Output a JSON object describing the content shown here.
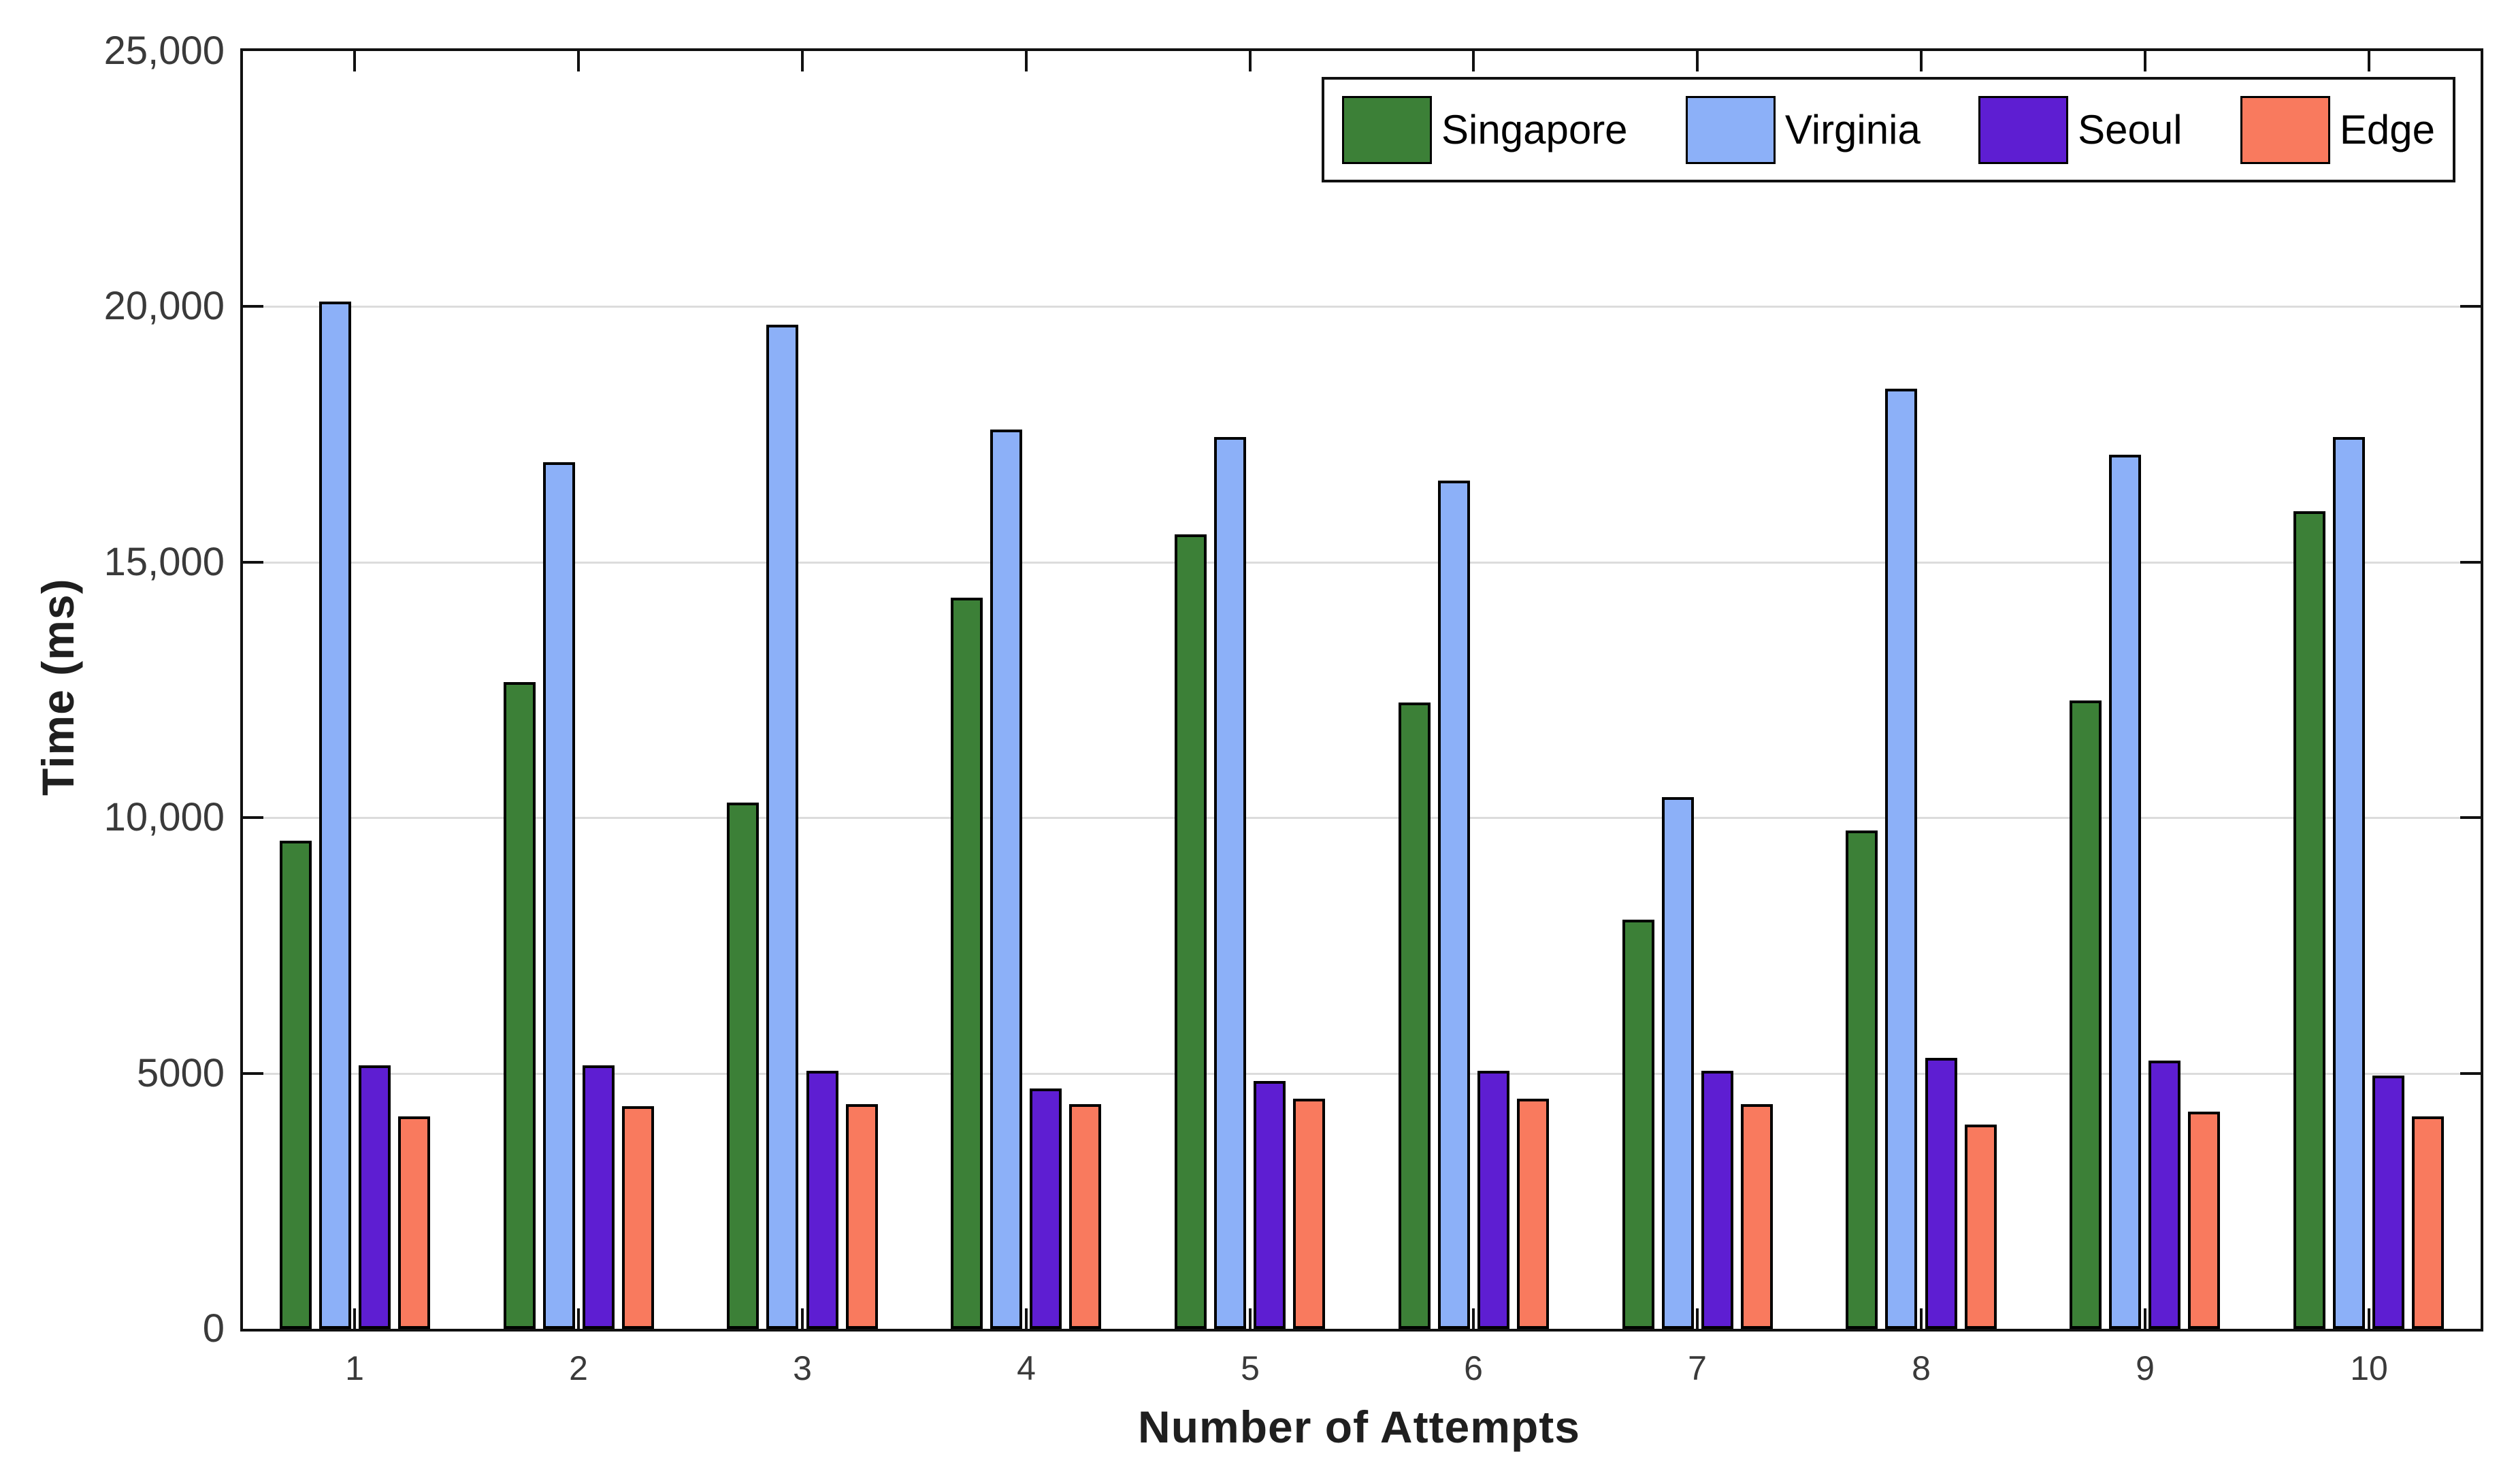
{
  "chart_data": {
    "type": "bar",
    "title": "",
    "xlabel": "Number of Attempts",
    "ylabel": "Time (ms)",
    "categories": [
      "1",
      "2",
      "3",
      "4",
      "5",
      "6",
      "7",
      "8",
      "9",
      "10"
    ],
    "series": [
      {
        "name": "Singapore",
        "color": "#3c8037",
        "values": [
          9550,
          12650,
          10300,
          14300,
          15550,
          12250,
          8000,
          9750,
          12300,
          16000
        ]
      },
      {
        "name": "Virginia",
        "color": "#8cb0f8",
        "values": [
          20100,
          16950,
          19650,
          17600,
          17450,
          16600,
          10400,
          18400,
          17100,
          17450
        ]
      },
      {
        "name": "Seoul",
        "color": "#5e1ed2",
        "values": [
          5150,
          5150,
          5050,
          4700,
          4850,
          5050,
          5050,
          5300,
          5250,
          4950
        ]
      },
      {
        "name": "Edge",
        "color": "#f97a5e",
        "values": [
          4150,
          4350,
          4400,
          4400,
          4500,
          4500,
          4400,
          4000,
          4250,
          4150
        ]
      }
    ],
    "ylim": [
      0,
      25000
    ],
    "ytick_values": [
      0,
      5000,
      10000,
      15000,
      20000,
      25000
    ],
    "ytick_labels": [
      "0",
      "5000",
      "10,000",
      "15,000",
      "20,000",
      "25,000"
    ],
    "bar_edge_color": "#000000",
    "grid": "horizontal",
    "gridline_color": "#dcdcdc",
    "legend_position": "top-right-inside",
    "legend_labels": [
      "Singapore",
      "Virginia",
      "Seoul",
      "Edge"
    ]
  }
}
